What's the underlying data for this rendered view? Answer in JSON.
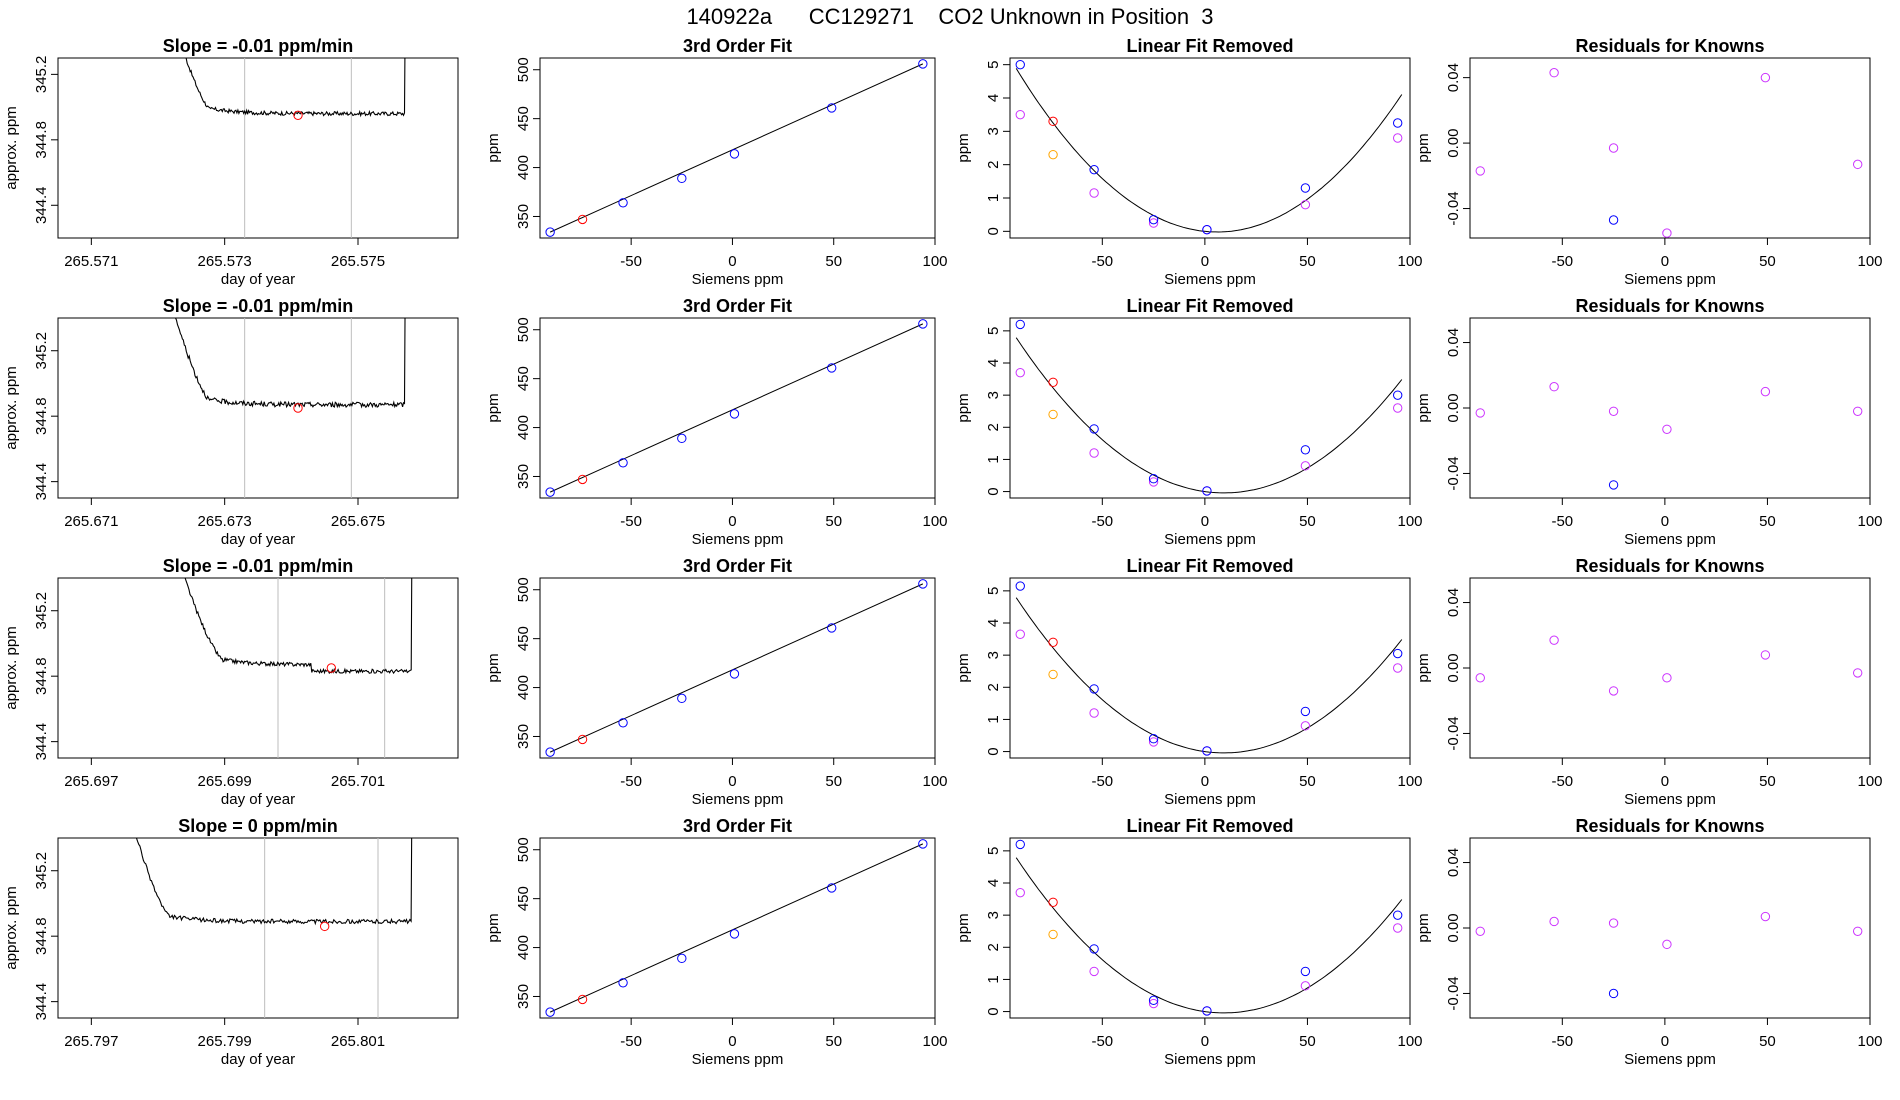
{
  "title": "140922a      CC129271    CO2 Unknown in Position  3",
  "colors": {
    "line": "#000000",
    "blue": "#0000ff",
    "red": "#ff0000",
    "magenta": "#cc33ff",
    "orange": "#ffa500",
    "gray": "#bebebe"
  },
  "chart_data": [
    {
      "type": "line",
      "title": "Slope =  -0.01  ppm/min",
      "xlabel": "day of year",
      "ylabel": "approx. ppm",
      "xticks": [
        "265.571",
        "265.573",
        "265.575"
      ],
      "xlim": [
        265.5705,
        265.5765
      ],
      "xtick_vals": [
        265.571,
        265.573,
        265.575
      ],
      "yticks": [
        "344.4",
        "344.8",
        "345.2"
      ],
      "ylim": [
        344.2,
        345.3
      ],
      "ytick_vals": [
        344.4,
        344.8,
        345.2
      ],
      "vlines": [
        265.5733,
        265.5749
      ],
      "flat_level": 344.96,
      "noise": 0.012,
      "dip_start": 265.5728,
      "center_point": [
        265.5741,
        344.95
      ],
      "trace_start": 265.572,
      "trace_end": 265.5758,
      "spike_at": 265.5757
    },
    {
      "type": "scatter",
      "title": "3rd Order Fit",
      "xlabel": "Siemens ppm",
      "ylabel": "ppm",
      "xticks": [
        "-50",
        "0",
        "50",
        "100"
      ],
      "xtick_vals": [
        -50,
        0,
        50,
        100
      ],
      "xlim": [
        -95,
        100
      ],
      "yticks": [
        "350",
        "400",
        "450",
        "500"
      ],
      "ytick_vals": [
        350,
        400,
        450,
        500
      ],
      "ylim": [
        328,
        512
      ],
      "blue": [
        [
          -90,
          334
        ],
        [
          -54,
          364
        ],
        [
          -25,
          389
        ],
        [
          1,
          414
        ],
        [
          49,
          461
        ],
        [
          94,
          506
        ]
      ],
      "red": [
        [
          -74,
          347
        ]
      ],
      "fit": [
        [
          -90,
          334
        ],
        [
          94,
          506
        ]
      ]
    },
    {
      "type": "scatter",
      "title": "Linear Fit Removed",
      "xlabel": "Siemens ppm",
      "ylabel": "ppm",
      "xticks": [
        "-50",
        "0",
        "50",
        "100"
      ],
      "xtick_vals": [
        -50,
        0,
        50,
        100
      ],
      "xlim": [
        -95,
        100
      ],
      "yticks": [
        "0",
        "1",
        "2",
        "3",
        "4",
        "5"
      ],
      "ytick_vals": [
        0,
        1,
        2,
        3,
        4,
        5
      ],
      "ylim": [
        -0.2,
        5.2
      ],
      "blue": [
        [
          -90,
          5.0
        ],
        [
          -54,
          1.85
        ],
        [
          -25,
          0.35
        ],
        [
          1,
          0.05
        ],
        [
          49,
          1.3
        ],
        [
          94,
          3.25
        ]
      ],
      "red": [
        [
          -74,
          3.3
        ]
      ],
      "magenta": [
        [
          -90,
          3.5
        ],
        [
          -54,
          1.15
        ],
        [
          -25,
          0.25
        ],
        [
          1,
          0.05
        ],
        [
          49,
          0.8
        ],
        [
          94,
          2.8
        ]
      ],
      "orange": [
        [
          -74,
          2.3
        ]
      ],
      "curve": {
        "a": 0.00051,
        "b": -0.0062,
        "c": 0.0
      }
    },
    {
      "type": "scatter",
      "title": "Residuals for Knowns",
      "xlabel": "Siemens ppm",
      "ylabel": "ppm",
      "xticks": [
        "-50",
        "0",
        "50",
        "100"
      ],
      "xtick_vals": [
        -50,
        0,
        50,
        100
      ],
      "xlim": [
        -95,
        100
      ],
      "yticks": [
        "-0.04",
        "0.00",
        "0.04"
      ],
      "ytick_vals": [
        -0.04,
        0,
        0.04
      ],
      "ylim": [
        -0.058,
        0.052
      ],
      "magenta": [
        [
          -90,
          -0.017
        ],
        [
          -54,
          0.043
        ],
        [
          -25,
          -0.003
        ],
        [
          1,
          -0.055
        ],
        [
          49,
          0.04
        ],
        [
          94,
          -0.013
        ]
      ],
      "blue": [
        [
          -25,
          -0.047
        ]
      ]
    },
    {
      "type": "line",
      "title": "Slope =  -0.01  ppm/min",
      "xlabel": "day of year",
      "ylabel": "approx. ppm",
      "xticks": [
        "265.671",
        "265.673",
        "265.675"
      ],
      "xlim": [
        265.6705,
        265.6765
      ],
      "xtick_vals": [
        265.671,
        265.673,
        265.675
      ],
      "yticks": [
        "344.4",
        "344.8",
        "345.2"
      ],
      "ylim": [
        344.3,
        345.4
      ],
      "ytick_vals": [
        344.4,
        344.8,
        345.2
      ],
      "vlines": [
        265.6733,
        265.6749
      ],
      "flat_level": 344.87,
      "noise": 0.015,
      "dip_start": 265.6728,
      "center_point": [
        265.6741,
        344.85
      ],
      "trace_start": 265.672,
      "trace_end": 265.6758,
      "spike_at": 265.6757
    },
    {
      "type": "scatter",
      "title": "3rd Order Fit",
      "xlabel": "Siemens ppm",
      "ylabel": "ppm",
      "xticks": [
        "-50",
        "0",
        "50",
        "100"
      ],
      "xtick_vals": [
        -50,
        0,
        50,
        100
      ],
      "xlim": [
        -95,
        100
      ],
      "yticks": [
        "350",
        "400",
        "450",
        "500"
      ],
      "ytick_vals": [
        350,
        400,
        450,
        500
      ],
      "ylim": [
        328,
        512
      ],
      "blue": [
        [
          -90,
          334
        ],
        [
          -54,
          364
        ],
        [
          -25,
          389
        ],
        [
          1,
          414
        ],
        [
          49,
          461
        ],
        [
          94,
          506
        ]
      ],
      "red": [
        [
          -74,
          347
        ]
      ],
      "fit": [
        [
          -90,
          334
        ],
        [
          94,
          506
        ]
      ]
    },
    {
      "type": "scatter",
      "title": "Linear Fit Removed",
      "xlabel": "Siemens ppm",
      "ylabel": "ppm",
      "xticks": [
        "-50",
        "0",
        "50",
        "100"
      ],
      "xtick_vals": [
        -50,
        0,
        50,
        100
      ],
      "xlim": [
        -95,
        100
      ],
      "yticks": [
        "0",
        "1",
        "2",
        "3",
        "4",
        "5"
      ],
      "ytick_vals": [
        0,
        1,
        2,
        3,
        4,
        5
      ],
      "ylim": [
        -0.2,
        5.4
      ],
      "blue": [
        [
          -90,
          5.2
        ],
        [
          -54,
          1.95
        ],
        [
          -25,
          0.4
        ],
        [
          1,
          0.02
        ],
        [
          49,
          1.3
        ],
        [
          94,
          3.0
        ]
      ],
      "red": [
        [
          -74,
          3.4
        ]
      ],
      "magenta": [
        [
          -90,
          3.7
        ],
        [
          -54,
          1.2
        ],
        [
          -25,
          0.3
        ],
        [
          1,
          0.02
        ],
        [
          49,
          0.8
        ],
        [
          94,
          2.6
        ]
      ],
      "orange": [
        [
          -74,
          2.4
        ]
      ],
      "curve": {
        "a": 0.00047,
        "b": -0.0088,
        "c": 0.0
      }
    },
    {
      "type": "scatter",
      "title": "Residuals for Knowns",
      "xlabel": "Siemens ppm",
      "ylabel": "ppm",
      "xticks": [
        "-50",
        "0",
        "50",
        "100"
      ],
      "xtick_vals": [
        -50,
        0,
        50,
        100
      ],
      "xlim": [
        -95,
        100
      ],
      "yticks": [
        "-0.04",
        "0.00",
        "0.04"
      ],
      "ytick_vals": [
        -0.04,
        0,
        0.04
      ],
      "ylim": [
        -0.055,
        0.055
      ],
      "magenta": [
        [
          -90,
          -0.003
        ],
        [
          -54,
          0.013
        ],
        [
          -25,
          -0.002
        ],
        [
          1,
          -0.013
        ],
        [
          49,
          0.01
        ],
        [
          94,
          -0.002
        ]
      ],
      "blue": [
        [
          -25,
          -0.047
        ]
      ]
    },
    {
      "type": "line",
      "title": "Slope =  -0.01  ppm/min",
      "xlabel": "day of year",
      "ylabel": "approx. ppm",
      "xticks": [
        "265.697",
        "265.699",
        "265.701"
      ],
      "xlim": [
        265.6965,
        265.7025
      ],
      "xtick_vals": [
        265.697,
        265.699,
        265.701
      ],
      "yticks": [
        "344.4",
        "344.8",
        "345.2"
      ],
      "ylim": [
        344.3,
        345.4
      ],
      "ytick_vals": [
        344.4,
        344.8,
        345.2
      ],
      "vlines": [
        265.6998,
        265.7014
      ],
      "flat_level": 344.87,
      "noise": 0.012,
      "dip_start": 265.699,
      "center_point": [
        265.7006,
        344.85
      ],
      "trace_start": 265.6981,
      "trace_end": 265.7019,
      "spike_at": 265.7018,
      "step": [
        265.7003,
        -0.04
      ]
    },
    {
      "type": "scatter",
      "title": "3rd Order Fit",
      "xlabel": "Siemens ppm",
      "ylabel": "ppm",
      "xticks": [
        "-50",
        "0",
        "50",
        "100"
      ],
      "xtick_vals": [
        -50,
        0,
        50,
        100
      ],
      "xlim": [
        -95,
        100
      ],
      "yticks": [
        "350",
        "400",
        "450",
        "500"
      ],
      "ytick_vals": [
        350,
        400,
        450,
        500
      ],
      "ylim": [
        328,
        512
      ],
      "blue": [
        [
          -90,
          334
        ],
        [
          -54,
          364
        ],
        [
          -25,
          389
        ],
        [
          1,
          414
        ],
        [
          49,
          461
        ],
        [
          94,
          506
        ]
      ],
      "red": [
        [
          -74,
          347
        ]
      ],
      "fit": [
        [
          -90,
          334
        ],
        [
          94,
          506
        ]
      ]
    },
    {
      "type": "scatter",
      "title": "Linear Fit Removed",
      "xlabel": "Siemens ppm",
      "ylabel": "ppm",
      "xticks": [
        "-50",
        "0",
        "50",
        "100"
      ],
      "xtick_vals": [
        -50,
        0,
        50,
        100
      ],
      "xlim": [
        -95,
        100
      ],
      "yticks": [
        "0",
        "1",
        "2",
        "3",
        "4",
        "5"
      ],
      "ytick_vals": [
        0,
        1,
        2,
        3,
        4,
        5
      ],
      "ylim": [
        -0.2,
        5.4
      ],
      "blue": [
        [
          -90,
          5.15
        ],
        [
          -54,
          1.95
        ],
        [
          -25,
          0.4
        ],
        [
          1,
          0.02
        ],
        [
          49,
          1.25
        ],
        [
          94,
          3.05
        ]
      ],
      "red": [
        [
          -74,
          3.4
        ]
      ],
      "magenta": [
        [
          -90,
          3.65
        ],
        [
          -54,
          1.2
        ],
        [
          -25,
          0.3
        ],
        [
          1,
          0.02
        ],
        [
          49,
          0.8
        ],
        [
          94,
          2.6
        ]
      ],
      "orange": [
        [
          -74,
          2.4
        ]
      ],
      "curve": {
        "a": 0.00047,
        "b": -0.0088,
        "c": 0.0
      }
    },
    {
      "type": "scatter",
      "title": "Residuals for Knowns",
      "xlabel": "Siemens ppm",
      "ylabel": "ppm",
      "xticks": [
        "-50",
        "0",
        "50",
        "100"
      ],
      "xtick_vals": [
        -50,
        0,
        50,
        100
      ],
      "xlim": [
        -95,
        100
      ],
      "yticks": [
        "-0.04",
        "0.00",
        "0.04"
      ],
      "ytick_vals": [
        -0.04,
        0,
        0.04
      ],
      "ylim": [
        -0.055,
        0.055
      ],
      "magenta": [
        [
          -90,
          -0.006
        ],
        [
          -54,
          0.017
        ],
        [
          -25,
          -0.014
        ],
        [
          1,
          -0.006
        ],
        [
          49,
          0.008
        ],
        [
          94,
          -0.003
        ]
      ],
      "blue": []
    },
    {
      "type": "line",
      "title": "Slope =  0  ppm/min",
      "xlabel": "day of year",
      "ylabel": "approx. ppm",
      "xticks": [
        "265.797",
        "265.799",
        "265.801"
      ],
      "xlim": [
        265.7965,
        265.8025
      ],
      "xtick_vals": [
        265.797,
        265.799,
        265.801
      ],
      "yticks": [
        "344.4",
        "344.8",
        "345.2"
      ],
      "ylim": [
        344.3,
        345.4
      ],
      "ytick_vals": [
        344.4,
        344.8,
        345.2
      ],
      "vlines": [
        265.7996,
        265.8013
      ],
      "flat_level": 344.89,
      "noise": 0.013,
      "dip_start": 265.7982,
      "center_point": [
        265.8005,
        344.86
      ],
      "trace_start": 265.7974,
      "trace_end": 265.8019,
      "spike_at": 265.8018
    },
    {
      "type": "scatter",
      "title": "3rd Order Fit",
      "xlabel": "Siemens ppm",
      "ylabel": "ppm",
      "xticks": [
        "-50",
        "0",
        "50",
        "100"
      ],
      "xtick_vals": [
        -50,
        0,
        50,
        100
      ],
      "xlim": [
        -95,
        100
      ],
      "yticks": [
        "350",
        "400",
        "450",
        "500"
      ],
      "ytick_vals": [
        350,
        400,
        450,
        500
      ],
      "ylim": [
        328,
        512
      ],
      "blue": [
        [
          -90,
          334
        ],
        [
          -54,
          364
        ],
        [
          -25,
          389
        ],
        [
          1,
          414
        ],
        [
          49,
          461
        ],
        [
          94,
          506
        ]
      ],
      "red": [
        [
          -74,
          347
        ]
      ],
      "fit": [
        [
          -90,
          334
        ],
        [
          94,
          506
        ]
      ]
    },
    {
      "type": "scatter",
      "title": "Linear Fit Removed",
      "xlabel": "Siemens ppm",
      "ylabel": "ppm",
      "xticks": [
        "-50",
        "0",
        "50",
        "100"
      ],
      "xtick_vals": [
        -50,
        0,
        50,
        100
      ],
      "xlim": [
        -95,
        100
      ],
      "yticks": [
        "0",
        "1",
        "2",
        "3",
        "4",
        "5"
      ],
      "ytick_vals": [
        0,
        1,
        2,
        3,
        4,
        5
      ],
      "ylim": [
        -0.2,
        5.4
      ],
      "blue": [
        [
          -90,
          5.2
        ],
        [
          -54,
          1.95
        ],
        [
          -25,
          0.35
        ],
        [
          1,
          0.02
        ],
        [
          49,
          1.25
        ],
        [
          94,
          3.0
        ]
      ],
      "red": [
        [
          -74,
          3.4
        ]
      ],
      "magenta": [
        [
          -90,
          3.7
        ],
        [
          -54,
          1.25
        ],
        [
          -25,
          0.25
        ],
        [
          1,
          0.02
        ],
        [
          49,
          0.8
        ],
        [
          94,
          2.6
        ]
      ],
      "orange": [
        [
          -74,
          2.4
        ]
      ],
      "curve": {
        "a": 0.00047,
        "b": -0.0088,
        "c": 0.0
      }
    },
    {
      "type": "scatter",
      "title": "Residuals for Knowns",
      "xlabel": "Siemens ppm",
      "ylabel": "ppm",
      "xticks": [
        "-50",
        "0",
        "50",
        "100"
      ],
      "xtick_vals": [
        -50,
        0,
        50,
        100
      ],
      "xlim": [
        -95,
        100
      ],
      "yticks": [
        "-0.04",
        "0.00",
        "0.04"
      ],
      "ytick_vals": [
        -0.04,
        0,
        0.04
      ],
      "ylim": [
        -0.055,
        0.055
      ],
      "magenta": [
        [
          -90,
          -0.002
        ],
        [
          -54,
          0.004
        ],
        [
          -25,
          0.003
        ],
        [
          1,
          -0.01
        ],
        [
          49,
          0.007
        ],
        [
          94,
          -0.002
        ]
      ],
      "blue": [
        [
          -25,
          -0.04
        ]
      ]
    }
  ]
}
